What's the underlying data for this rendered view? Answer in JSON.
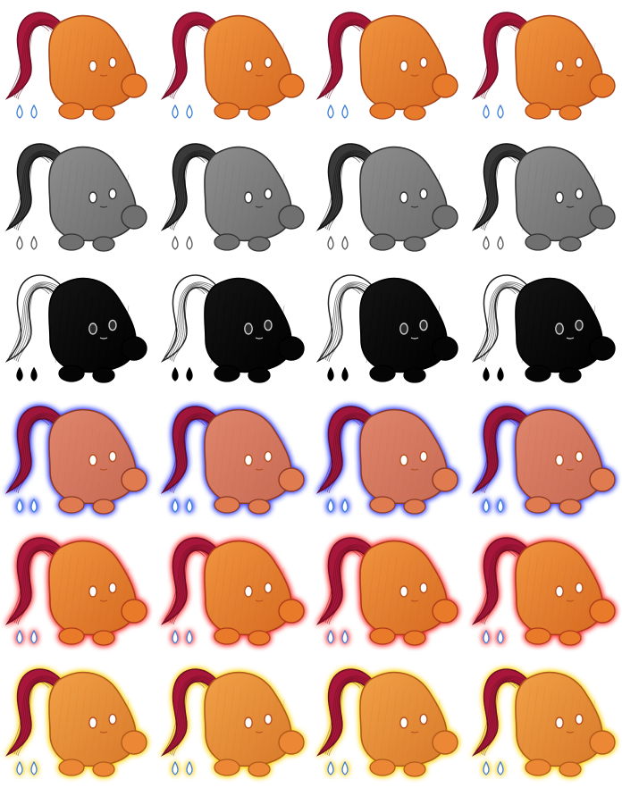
{
  "sheet": {
    "columns": 4,
    "rows": [
      {
        "name": "normal",
        "body": "#f0943f",
        "bodyShade": "#d66a22",
        "stroke": "#a8461a",
        "hair": "#a8183a",
        "hairLine": "#6e0d25",
        "feet": "#e87a2c",
        "eye": "#ffffff",
        "pupil": "#b8501e",
        "drop": "#ffffff",
        "dropLine": "#3f7fd6",
        "glow": "none"
      },
      {
        "name": "grayscale",
        "body": "#8e8e8e",
        "bodyShade": "#6c6c6c",
        "stroke": "#333333",
        "hair": "#3a3a3a",
        "hairLine": "#111111",
        "feet": "#707070",
        "eye": "#ffffff",
        "pupil": "#333333",
        "drop": "#ffffff",
        "dropLine": "#555555",
        "glow": "none"
      },
      {
        "name": "silhouette",
        "body": "#141414",
        "bodyShade": "#000000",
        "stroke": "#000000",
        "hair": "#ffffff",
        "hairLine": "#222222",
        "feet": "#050505",
        "eye": "#2a2a2a",
        "pupil": "#cccccc",
        "drop": "#000000",
        "dropLine": "#000000",
        "glow": "none"
      },
      {
        "name": "blue-glow",
        "body": "#e0866c",
        "bodyShade": "#c86a54",
        "stroke": "#8a3a28",
        "hair": "#a0183a",
        "hairLine": "#5e0d25",
        "feet": "#e07a50",
        "eye": "#ffffff",
        "pupil": "#b8501e",
        "drop": "#ffffff",
        "dropLine": "#3f7fd6",
        "glow": "#2a3cff"
      },
      {
        "name": "red-glow",
        "body": "#f0943f",
        "bodyShade": "#d66a22",
        "stroke": "#b03a1a",
        "hair": "#a8183a",
        "hairLine": "#6e0d25",
        "feet": "#e87a2c",
        "eye": "#ffffff",
        "pupil": "#b8501e",
        "drop": "#ffffff",
        "dropLine": "#3f7fd6",
        "glow": "#ff2a2a"
      },
      {
        "name": "yellow-glow",
        "body": "#f2a048",
        "bodyShade": "#d87a2a",
        "stroke": "#b05a1a",
        "hair": "#a8183a",
        "hairLine": "#6e0d25",
        "feet": "#ec8834",
        "eye": "#ffffff",
        "pupil": "#b8501e",
        "drop": "#ffffff",
        "dropLine": "#3f7fd6",
        "glow": "#ffd400"
      }
    ]
  }
}
